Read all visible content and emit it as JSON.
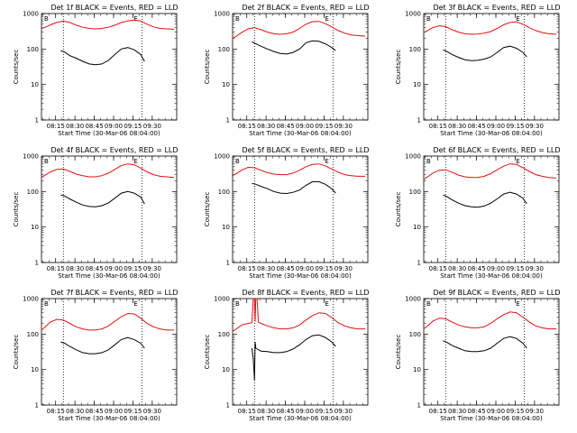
{
  "panels_common": {
    "xlabel": "Start Time (30-Mar-06 08:04:00)",
    "ylabel": "Counts/sec",
    "xticks": [
      "08:15",
      "08:30",
      "08:45",
      "09:00",
      "09:15",
      "09:30"
    ],
    "yticks": [
      "1",
      "10",
      "100",
      "1000"
    ],
    "marker_b": "B",
    "marker_e": "E"
  },
  "chart_data": [
    {
      "type": "line",
      "title": "Det 1f BLACK = Events, RED = LLD",
      "xlabel": "Start Time (30-Mar-06 08:04:00)",
      "ylabel": "Counts/sec",
      "yscale": "log",
      "ylim": [
        1,
        1000
      ],
      "xlim_minutes": [
        0,
        105
      ],
      "vlines_minutes": [
        17,
        78
      ],
      "series": [
        {
          "color": "#000000",
          "x": [
            15,
            18,
            22,
            27,
            32,
            37,
            42,
            47,
            52,
            57,
            62,
            67,
            72,
            77,
            80
          ],
          "y": [
            90,
            82,
            65,
            55,
            45,
            38,
            36,
            38,
            48,
            70,
            100,
            110,
            95,
            70,
            45
          ]
        },
        {
          "color": "#e01010",
          "x": [
            0,
            3,
            7,
            12,
            17,
            22,
            27,
            32,
            37,
            42,
            47,
            52,
            57,
            62,
            67,
            72,
            77,
            82,
            87,
            92,
            97,
            103
          ],
          "y": [
            380,
            410,
            480,
            560,
            610,
            560,
            470,
            410,
            380,
            370,
            380,
            410,
            470,
            560,
            620,
            660,
            610,
            500,
            420,
            380,
            370,
            360
          ]
        }
      ]
    },
    {
      "type": "line",
      "title": "Det 2f BLACK = Events, RED = LLD",
      "xlabel": "Start Time (30-Mar-06 08:04:00)",
      "ylabel": "Counts/sec",
      "yscale": "log",
      "ylim": [
        1,
        1000
      ],
      "xlim_minutes": [
        0,
        105
      ],
      "vlines_minutes": [
        17,
        78
      ],
      "series": [
        {
          "color": "#000000",
          "x": [
            15,
            18,
            22,
            27,
            32,
            37,
            42,
            47,
            52,
            57,
            62,
            67,
            72,
            77,
            80
          ],
          "y": [
            160,
            140,
            120,
            100,
            85,
            75,
            72,
            80,
            100,
            150,
            170,
            165,
            140,
            110,
            90
          ]
        },
        {
          "color": "#e01010",
          "x": [
            0,
            3,
            7,
            12,
            17,
            22,
            27,
            32,
            37,
            42,
            47,
            52,
            57,
            62,
            67,
            72,
            77,
            82,
            87,
            92,
            97,
            103
          ],
          "y": [
            200,
            230,
            290,
            370,
            400,
            350,
            300,
            270,
            260,
            270,
            300,
            380,
            500,
            590,
            600,
            520,
            420,
            330,
            280,
            250,
            240,
            230
          ]
        }
      ]
    },
    {
      "type": "line",
      "title": "Det 3f BLACK = Events, RED = LLD",
      "xlabel": "Start Time (30-Mar-06 08:04:00)",
      "ylabel": "Counts/sec",
      "yscale": "log",
      "ylim": [
        1,
        1000
      ],
      "xlim_minutes": [
        0,
        105
      ],
      "vlines_minutes": [
        17,
        78
      ],
      "series": [
        {
          "color": "#000000",
          "x": [
            15,
            18,
            22,
            27,
            32,
            37,
            42,
            47,
            52,
            57,
            62,
            67,
            72,
            77,
            80
          ],
          "y": [
            95,
            85,
            70,
            58,
            50,
            47,
            48,
            52,
            60,
            80,
            110,
            120,
            105,
            80,
            60
          ]
        },
        {
          "color": "#e01010",
          "x": [
            0,
            3,
            7,
            12,
            17,
            22,
            27,
            32,
            37,
            42,
            47,
            52,
            57,
            62,
            67,
            72,
            77,
            82,
            87,
            92,
            97,
            103
          ],
          "y": [
            290,
            330,
            400,
            450,
            430,
            350,
            300,
            270,
            260,
            265,
            280,
            310,
            380,
            480,
            560,
            580,
            500,
            400,
            330,
            290,
            270,
            260
          ]
        }
      ]
    },
    {
      "type": "line",
      "title": "Det 4f BLACK = Events, RED = LLD",
      "xlabel": "Start Time (30-Mar-06 08:04:00)",
      "ylabel": "Counts/sec",
      "yscale": "log",
      "ylim": [
        1,
        1000
      ],
      "xlim_minutes": [
        0,
        105
      ],
      "vlines_minutes": [
        17,
        78
      ],
      "series": [
        {
          "color": "#000000",
          "x": [
            15,
            18,
            22,
            27,
            32,
            37,
            42,
            47,
            52,
            57,
            62,
            67,
            72,
            77,
            80
          ],
          "y": [
            80,
            75,
            62,
            50,
            42,
            38,
            37,
            40,
            48,
            65,
            90,
            100,
            90,
            70,
            45
          ]
        },
        {
          "color": "#e01010",
          "x": [
            0,
            3,
            7,
            12,
            17,
            22,
            27,
            32,
            37,
            42,
            47,
            52,
            57,
            62,
            67,
            72,
            77,
            82,
            87,
            92,
            97,
            103
          ],
          "y": [
            250,
            290,
            360,
            420,
            430,
            370,
            310,
            280,
            260,
            260,
            280,
            330,
            420,
            540,
            600,
            570,
            460,
            360,
            300,
            270,
            260,
            250
          ]
        }
      ]
    },
    {
      "type": "line",
      "title": "Det 5f BLACK = Events, RED = LLD",
      "xlabel": "Start Time (30-Mar-06 08:04:00)",
      "ylabel": "Counts/sec",
      "yscale": "log",
      "ylim": [
        1,
        1000
      ],
      "xlim_minutes": [
        0,
        105
      ],
      "vlines_minutes": [
        17,
        78
      ],
      "series": [
        {
          "color": "#000000",
          "x": [
            15,
            18,
            22,
            27,
            32,
            37,
            42,
            47,
            52,
            57,
            62,
            67,
            72,
            77,
            80
          ],
          "y": [
            170,
            160,
            140,
            120,
            100,
            90,
            88,
            95,
            110,
            150,
            190,
            190,
            160,
            120,
            90
          ]
        },
        {
          "color": "#e01010",
          "x": [
            0,
            3,
            7,
            12,
            17,
            22,
            27,
            32,
            37,
            42,
            47,
            52,
            57,
            62,
            67,
            72,
            77,
            82,
            87,
            92,
            97,
            103
          ],
          "y": [
            280,
            320,
            400,
            480,
            470,
            400,
            340,
            310,
            300,
            300,
            330,
            400,
            500,
            580,
            600,
            530,
            430,
            350,
            300,
            280,
            270,
            270
          ]
        }
      ]
    },
    {
      "type": "line",
      "title": "Det 6f BLACK = Events, RED = LLD",
      "xlabel": "Start Time (30-Mar-06 08:04:00)",
      "ylabel": "Counts/sec",
      "yscale": "log",
      "ylim": [
        1,
        1000
      ],
      "xlim_minutes": [
        0,
        105
      ],
      "vlines_minutes": [
        17,
        78
      ],
      "series": [
        {
          "color": "#000000",
          "x": [
            15,
            18,
            22,
            27,
            32,
            37,
            42,
            47,
            52,
            57,
            62,
            67,
            72,
            77,
            80
          ],
          "y": [
            80,
            72,
            58,
            47,
            40,
            37,
            36,
            39,
            47,
            62,
            85,
            95,
            85,
            65,
            45
          ]
        },
        {
          "color": "#e01010",
          "x": [
            0,
            3,
            7,
            12,
            17,
            22,
            27,
            32,
            37,
            42,
            47,
            52,
            57,
            62,
            67,
            72,
            77,
            82,
            87,
            92,
            97,
            103
          ],
          "y": [
            220,
            260,
            330,
            400,
            410,
            350,
            290,
            260,
            250,
            250,
            270,
            320,
            410,
            520,
            600,
            580,
            470,
            370,
            300,
            270,
            250,
            240
          ]
        }
      ]
    },
    {
      "type": "line",
      "title": "Det 7f BLACK = Events, RED = LLD",
      "xlabel": "Start Time (30-Mar-06 08:04:00)",
      "ylabel": "Counts/sec",
      "yscale": "log",
      "ylim": [
        1,
        1000
      ],
      "xlim_minutes": [
        0,
        105
      ],
      "vlines_minutes": [
        17,
        78
      ],
      "series": [
        {
          "color": "#000000",
          "x": [
            15,
            18,
            22,
            27,
            32,
            37,
            42,
            47,
            52,
            57,
            62,
            67,
            72,
            77,
            80
          ],
          "y": [
            60,
            55,
            45,
            36,
            30,
            28,
            28,
            30,
            36,
            50,
            70,
            80,
            70,
            55,
            40
          ]
        },
        {
          "color": "#e01010",
          "x": [
            0,
            3,
            7,
            12,
            17,
            22,
            27,
            32,
            37,
            42,
            47,
            52,
            57,
            62,
            67,
            72,
            77,
            82,
            87,
            92,
            97,
            103
          ],
          "y": [
            130,
            160,
            220,
            260,
            250,
            200,
            160,
            140,
            130,
            130,
            140,
            170,
            230,
            310,
            380,
            370,
            280,
            200,
            160,
            140,
            130,
            130
          ]
        }
      ]
    },
    {
      "type": "line",
      "title": "Det 8f BLACK = Events, RED = LLD",
      "xlabel": "Start Time (30-Mar-06 08:04:00)",
      "ylabel": "Counts/sec",
      "yscale": "log",
      "ylim": [
        1,
        1000
      ],
      "xlim_minutes": [
        0,
        105
      ],
      "vlines_minutes": [
        17,
        78
      ],
      "series": [
        {
          "color": "#000000",
          "x": [
            15,
            16,
            17,
            17.5,
            18,
            22,
            27,
            32,
            37,
            42,
            47,
            52,
            57,
            62,
            67,
            72,
            77,
            80
          ],
          "y": [
            40,
            20,
            5,
            60,
            40,
            33,
            32,
            30,
            30,
            32,
            38,
            50,
            70,
            90,
            95,
            80,
            60,
            45
          ]
        },
        {
          "color": "#e01010",
          "x": [
            0,
            3,
            7,
            12,
            15,
            16,
            17,
            17.5,
            18,
            19,
            20,
            22,
            27,
            32,
            37,
            42,
            47,
            52,
            57,
            62,
            67,
            72,
            77,
            82,
            87,
            92,
            97,
            103
          ],
          "y": [
            120,
            140,
            180,
            200,
            210,
            1000,
            1000,
            230,
            1000,
            1000,
            220,
            200,
            170,
            150,
            140,
            140,
            150,
            180,
            250,
            330,
            400,
            380,
            290,
            210,
            170,
            150,
            140,
            140
          ]
        }
      ]
    },
    {
      "type": "line",
      "title": "Det 9f BLACK = Events, RED = LLD",
      "xlabel": "Start Time (30-Mar-06 08:04:00)",
      "ylabel": "Counts/sec",
      "yscale": "log",
      "ylim": [
        1,
        1000
      ],
      "xlim_minutes": [
        0,
        105
      ],
      "vlines_minutes": [
        17,
        78
      ],
      "series": [
        {
          "color": "#000000",
          "x": [
            15,
            18,
            22,
            27,
            32,
            37,
            42,
            47,
            52,
            57,
            62,
            67,
            72,
            77,
            80
          ],
          "y": [
            65,
            58,
            48,
            40,
            34,
            32,
            32,
            34,
            40,
            55,
            75,
            85,
            75,
            55,
            40
          ]
        },
        {
          "color": "#e01010",
          "x": [
            0,
            3,
            7,
            12,
            17,
            22,
            27,
            32,
            37,
            42,
            47,
            52,
            57,
            62,
            67,
            72,
            77,
            82,
            87,
            92,
            97,
            103
          ],
          "y": [
            140,
            170,
            230,
            280,
            270,
            220,
            180,
            160,
            150,
            150,
            160,
            200,
            270,
            350,
            420,
            400,
            300,
            220,
            170,
            150,
            140,
            140
          ]
        }
      ]
    }
  ]
}
